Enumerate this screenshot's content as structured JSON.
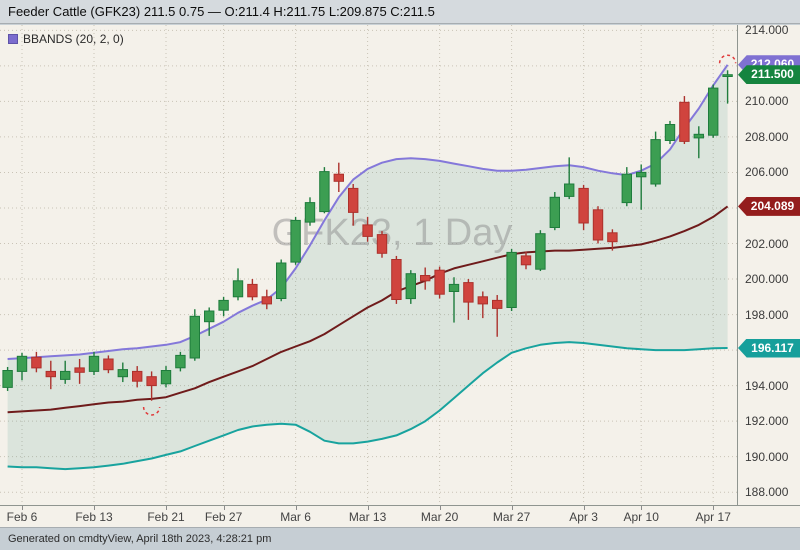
{
  "header": {
    "title": "Feeder Cattle (GFK23) 211.5 0.75 — O:211.4 H:211.75 L:209.875 C:211.5"
  },
  "legend": {
    "label": "BBANDS (20, 2, 0)",
    "swatch_color": "#7b6cce"
  },
  "watermark": "GFK23, 1 Day",
  "footer": {
    "text": "Generated on cmdtyView, April 18th 2023, 4:28:21 pm"
  },
  "chart_data": {
    "type": "candlestick",
    "symbol": "GFK23",
    "interval": "1 Day",
    "overlay": "Bollinger Bands (20, 2, 0)",
    "last_trade": {
      "price": 211.5,
      "change": 0.75,
      "open": 211.4,
      "high": 211.75,
      "low": 209.875,
      "close": 211.5
    },
    "y_axis": {
      "min": 187.28,
      "max": 214.3,
      "tick_step": 2,
      "tick_labels": [
        "214.000",
        "212.000",
        "210.000",
        "208.000",
        "206.000",
        "204.000",
        "202.000",
        "200.000",
        "198.000",
        "196.000",
        "194.000",
        "192.000",
        "190.000",
        "188.000"
      ]
    },
    "x_ticks": [
      {
        "index": 1,
        "label": "Feb 6"
      },
      {
        "index": 6,
        "label": "Feb 13"
      },
      {
        "index": 11,
        "label": "Feb 21"
      },
      {
        "index": 15,
        "label": "Feb 27"
      },
      {
        "index": 20,
        "label": "Mar 6"
      },
      {
        "index": 25,
        "label": "Mar 13"
      },
      {
        "index": 30,
        "label": "Mar 20"
      },
      {
        "index": 35,
        "label": "Mar 27"
      },
      {
        "index": 40,
        "label": "Apr 3"
      },
      {
        "index": 44,
        "label": "Apr 10"
      },
      {
        "index": 49,
        "label": "Apr 17"
      }
    ],
    "candles": [
      {
        "date": "Feb 3",
        "o": 193.9,
        "h": 195.05,
        "l": 193.7,
        "c": 194.85
      },
      {
        "date": "Feb 6",
        "o": 194.8,
        "h": 195.85,
        "l": 194.3,
        "c": 195.65
      },
      {
        "date": "Feb 7",
        "o": 195.6,
        "h": 195.9,
        "l": 194.75,
        "c": 195.0
      },
      {
        "date": "Feb 8",
        "o": 194.8,
        "h": 195.4,
        "l": 193.8,
        "c": 194.5
      },
      {
        "date": "Feb 9",
        "o": 194.35,
        "h": 195.4,
        "l": 194.1,
        "c": 194.8
      },
      {
        "date": "Feb 10",
        "o": 195.0,
        "h": 195.5,
        "l": 194.1,
        "c": 194.75
      },
      {
        "date": "Feb 13",
        "o": 194.8,
        "h": 195.9,
        "l": 194.6,
        "c": 195.65
      },
      {
        "date": "Feb 14",
        "o": 195.5,
        "h": 195.7,
        "l": 194.7,
        "c": 194.9
      },
      {
        "date": "Feb 15",
        "o": 194.5,
        "h": 195.3,
        "l": 194.2,
        "c": 194.9
      },
      {
        "date": "Feb 16",
        "o": 194.8,
        "h": 195.1,
        "l": 193.9,
        "c": 194.25
      },
      {
        "date": "Feb 17",
        "o": 194.5,
        "h": 194.8,
        "l": 193.15,
        "c": 194.0
      },
      {
        "date": "Feb 21",
        "o": 194.1,
        "h": 195.1,
        "l": 193.9,
        "c": 194.85
      },
      {
        "date": "Feb 22",
        "o": 195.0,
        "h": 195.9,
        "l": 194.8,
        "c": 195.7
      },
      {
        "date": "Feb 23",
        "o": 195.55,
        "h": 198.3,
        "l": 195.4,
        "c": 197.9
      },
      {
        "date": "Feb 24",
        "o": 197.6,
        "h": 198.4,
        "l": 196.8,
        "c": 198.2
      },
      {
        "date": "Feb 27",
        "o": 198.25,
        "h": 199.0,
        "l": 197.9,
        "c": 198.8
      },
      {
        "date": "Feb 28",
        "o": 199.0,
        "h": 200.6,
        "l": 198.8,
        "c": 199.9
      },
      {
        "date": "Mar 1",
        "o": 199.7,
        "h": 200.0,
        "l": 198.8,
        "c": 199.0
      },
      {
        "date": "Mar 2",
        "o": 199.0,
        "h": 199.4,
        "l": 198.3,
        "c": 198.6
      },
      {
        "date": "Mar 3",
        "o": 198.9,
        "h": 201.1,
        "l": 198.75,
        "c": 200.9
      },
      {
        "date": "Mar 6",
        "o": 200.95,
        "h": 203.5,
        "l": 200.8,
        "c": 203.3
      },
      {
        "date": "Mar 7",
        "o": 203.2,
        "h": 204.6,
        "l": 203.0,
        "c": 204.3
      },
      {
        "date": "Mar 8",
        "o": 203.8,
        "h": 206.3,
        "l": 203.7,
        "c": 206.05
      },
      {
        "date": "Mar 9",
        "o": 205.9,
        "h": 206.55,
        "l": 204.9,
        "c": 205.5
      },
      {
        "date": "Mar 10",
        "o": 205.1,
        "h": 205.35,
        "l": 203.0,
        "c": 203.75
      },
      {
        "date": "Mar 13",
        "o": 203.05,
        "h": 203.5,
        "l": 202.1,
        "c": 202.4
      },
      {
        "date": "Mar 14",
        "o": 202.5,
        "h": 202.7,
        "l": 201.2,
        "c": 201.45
      },
      {
        "date": "Mar 15",
        "o": 201.1,
        "h": 201.3,
        "l": 198.6,
        "c": 198.85
      },
      {
        "date": "Mar 16",
        "o": 198.9,
        "h": 200.5,
        "l": 198.6,
        "c": 200.3
      },
      {
        "date": "Mar 17",
        "o": 200.2,
        "h": 200.65,
        "l": 199.4,
        "c": 199.9
      },
      {
        "date": "Mar 20",
        "o": 200.5,
        "h": 200.7,
        "l": 198.9,
        "c": 199.15
      },
      {
        "date": "Mar 21",
        "o": 199.3,
        "h": 200.1,
        "l": 197.55,
        "c": 199.7
      },
      {
        "date": "Mar 22",
        "o": 199.8,
        "h": 200.0,
        "l": 197.7,
        "c": 198.7
      },
      {
        "date": "Mar 23",
        "o": 199.0,
        "h": 199.3,
        "l": 197.8,
        "c": 198.6
      },
      {
        "date": "Mar 24",
        "o": 198.8,
        "h": 199.1,
        "l": 196.75,
        "c": 198.35
      },
      {
        "date": "Mar 27",
        "o": 198.4,
        "h": 201.7,
        "l": 198.2,
        "c": 201.5
      },
      {
        "date": "Mar 28",
        "o": 201.3,
        "h": 201.55,
        "l": 200.55,
        "c": 200.8
      },
      {
        "date": "Mar 29",
        "o": 200.55,
        "h": 202.75,
        "l": 200.45,
        "c": 202.55
      },
      {
        "date": "Mar 30",
        "o": 202.9,
        "h": 204.9,
        "l": 202.75,
        "c": 204.6
      },
      {
        "date": "Mar 31",
        "o": 204.65,
        "h": 206.85,
        "l": 204.5,
        "c": 205.35
      },
      {
        "date": "Apr 3",
        "o": 205.1,
        "h": 205.3,
        "l": 202.75,
        "c": 203.15
      },
      {
        "date": "Apr 4",
        "o": 203.9,
        "h": 204.1,
        "l": 202.0,
        "c": 202.2
      },
      {
        "date": "Apr 5",
        "o": 202.6,
        "h": 202.8,
        "l": 201.6,
        "c": 202.1
      },
      {
        "date": "Apr 6",
        "o": 204.3,
        "h": 206.3,
        "l": 204.1,
        "c": 205.9
      },
      {
        "date": "Apr 10",
        "o": 205.75,
        "h": 206.45,
        "l": 203.9,
        "c": 206.0
      },
      {
        "date": "Apr 11",
        "o": 205.35,
        "h": 208.3,
        "l": 205.2,
        "c": 207.85
      },
      {
        "date": "Apr 12",
        "o": 207.8,
        "h": 208.9,
        "l": 207.6,
        "c": 208.7
      },
      {
        "date": "Apr 13",
        "o": 209.95,
        "h": 210.3,
        "l": 207.6,
        "c": 207.75
      },
      {
        "date": "Apr 14",
        "o": 207.95,
        "h": 208.6,
        "l": 206.8,
        "c": 208.15
      },
      {
        "date": "Apr 17",
        "o": 208.1,
        "h": 210.95,
        "l": 207.95,
        "c": 210.75
      },
      {
        "date": "Apr 18",
        "o": 211.4,
        "h": 211.75,
        "l": 209.875,
        "c": 211.5
      }
    ],
    "bollinger": {
      "period": 20,
      "stddev": 2,
      "offset": 0,
      "upper": [
        195.5,
        195.55,
        195.6,
        195.65,
        195.7,
        195.75,
        195.85,
        195.95,
        196.05,
        196.1,
        196.2,
        196.3,
        196.45,
        196.8,
        197.2,
        197.6,
        198.1,
        198.5,
        198.85,
        199.5,
        200.6,
        201.9,
        203.3,
        204.6,
        205.6,
        206.2,
        206.55,
        206.75,
        206.8,
        206.75,
        206.65,
        206.5,
        206.35,
        206.2,
        206.1,
        206.1,
        206.15,
        206.25,
        206.35,
        206.4,
        206.3,
        206.1,
        205.95,
        205.85,
        206.1,
        206.5,
        207.3,
        208.5,
        209.6,
        210.9,
        212.06
      ],
      "middle": [
        192.5,
        192.55,
        192.6,
        192.65,
        192.75,
        192.85,
        192.95,
        193.05,
        193.1,
        193.2,
        193.25,
        193.35,
        193.6,
        193.85,
        194.2,
        194.5,
        194.8,
        195.1,
        195.5,
        195.9,
        196.2,
        196.5,
        196.9,
        197.4,
        197.9,
        198.4,
        198.8,
        199.3,
        199.6,
        199.9,
        200.3,
        200.6,
        200.8,
        201.0,
        201.2,
        201.4,
        201.5,
        201.55,
        201.6,
        201.6,
        201.65,
        201.7,
        201.75,
        201.85,
        201.95,
        202.15,
        202.4,
        202.7,
        203.05,
        203.5,
        204.089
      ],
      "lower": [
        189.45,
        189.4,
        189.4,
        189.35,
        189.3,
        189.35,
        189.4,
        189.5,
        189.6,
        189.75,
        189.9,
        190.1,
        190.3,
        190.6,
        190.9,
        191.2,
        191.5,
        191.7,
        191.8,
        191.85,
        191.8,
        191.4,
        190.9,
        190.75,
        190.75,
        190.85,
        191.0,
        191.2,
        191.55,
        192.0,
        192.6,
        193.3,
        194.0,
        194.7,
        195.3,
        195.85,
        196.1,
        196.3,
        196.4,
        196.45,
        196.4,
        196.3,
        196.2,
        196.1,
        196.05,
        196.0,
        196.0,
        196.0,
        196.05,
        196.1,
        196.117
      ]
    },
    "badges": [
      {
        "name": "upper-band-badge",
        "label": "212.060",
        "value": 212.06,
        "color": "#7f71d2"
      },
      {
        "name": "last-price-badge",
        "label": "211.500",
        "value": 211.5,
        "color": "#15843f"
      },
      {
        "name": "middle-band-badge",
        "label": "204.089",
        "value": 204.089,
        "color": "#941d1d"
      },
      {
        "name": "lower-band-badge",
        "label": "196.117",
        "value": 196.117,
        "color": "#169f9b"
      }
    ],
    "annotations": [
      {
        "type": "arc-below",
        "index": 10,
        "price": 192.8
      },
      {
        "type": "arc-above",
        "index": 50,
        "price": 212.15
      }
    ],
    "colors": {
      "up_fill": "#3c9e52",
      "up_stroke": "#1e7c3c",
      "down_fill": "#d0443e",
      "down_stroke": "#ac312c",
      "upper_band": "#8478da",
      "middle_band": "#6f1b1b",
      "lower_band": "#18a39e",
      "band_fill": "rgba(70,150,135,0.14)",
      "annotation": "#e03a3a",
      "grid": "#c9c3b6"
    }
  }
}
